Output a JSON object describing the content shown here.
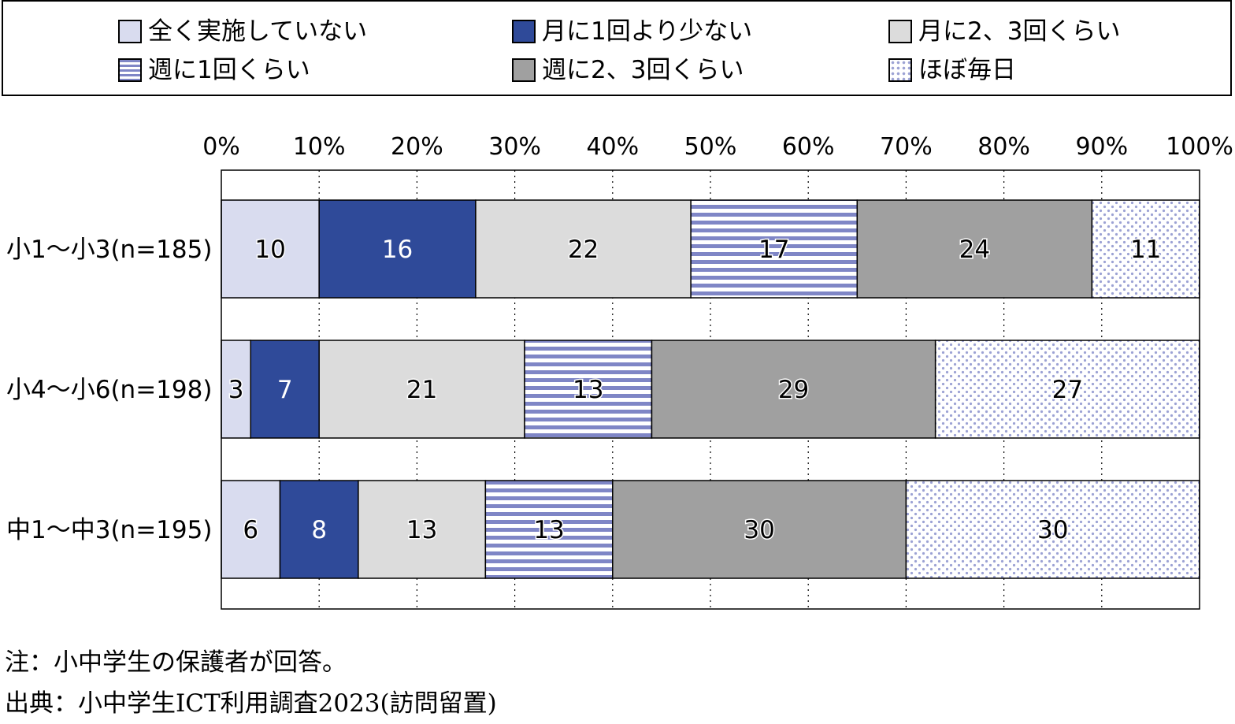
{
  "chart_data": {
    "type": "bar",
    "orientation": "horizontal",
    "stacked": true,
    "categories": [
      "小1～小3(n=185)",
      "小4～小6(n=198)",
      "中1～中3(n=195)"
    ],
    "series": [
      {
        "name": "全く実施していない",
        "values": [
          10,
          3,
          6
        ],
        "color": "#d9dcef",
        "pattern": "solid"
      },
      {
        "name": "月に1回より少ない",
        "values": [
          16,
          7,
          8
        ],
        "color": "#2f4a99",
        "pattern": "solid"
      },
      {
        "name": "月に2、3回くらい",
        "values": [
          22,
          21,
          13
        ],
        "color": "#dcdcdc",
        "pattern": "solid"
      },
      {
        "name": "週に1回くらい",
        "values": [
          17,
          13,
          13
        ],
        "color": "#7f86c6",
        "pattern": "stripes"
      },
      {
        "name": "週に2、3回くらい",
        "values": [
          24,
          29,
          30
        ],
        "color": "#a0a0a0",
        "pattern": "solid"
      },
      {
        "name": "ほぼ毎日",
        "values": [
          11,
          27,
          30
        ],
        "color": "#9ca2d4",
        "pattern": "dots"
      }
    ],
    "xlim": [
      0,
      100
    ],
    "xticks": [
      "0%",
      "10%",
      "20%",
      "30%",
      "40%",
      "50%",
      "60%",
      "70%",
      "80%",
      "90%",
      "100%"
    ],
    "grid": "vertical dotted",
    "legend_position": "top"
  },
  "notes": {
    "note": "注：小中学生の保護者が回答。",
    "source": "出典：小中学生ICT利用調査2023(訪問留置)"
  }
}
